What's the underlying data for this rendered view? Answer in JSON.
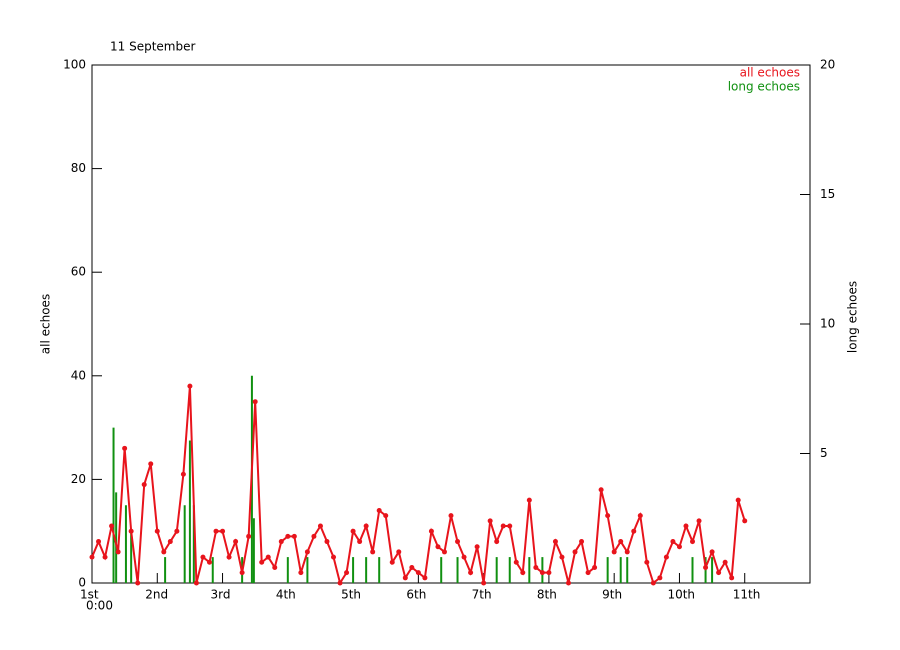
{
  "chart_data": {
    "type": "line",
    "title": "11 September",
    "y_label": "all echoes",
    "y2_label": "long echoes",
    "x_start_time": "0:00",
    "xlim": [
      0,
      11
    ],
    "xticks": [
      {
        "value": 0,
        "label": "1st"
      },
      {
        "value": 1,
        "label": "2nd"
      },
      {
        "value": 2,
        "label": "3rd"
      },
      {
        "value": 3,
        "label": "4th"
      },
      {
        "value": 4,
        "label": "5th"
      },
      {
        "value": 5,
        "label": "6th"
      },
      {
        "value": 6,
        "label": "7th"
      },
      {
        "value": 7,
        "label": "8th"
      },
      {
        "value": 8,
        "label": "9th"
      },
      {
        "value": 9,
        "label": "10th"
      },
      {
        "value": 10,
        "label": "11th"
      }
    ],
    "ylim": [
      0,
      100
    ],
    "yticks": [
      0,
      20,
      40,
      60,
      80,
      100
    ],
    "y2lim": [
      0,
      20
    ],
    "y2ticks": [
      5,
      10,
      15,
      20
    ],
    "legend": "top-right",
    "series": [
      {
        "name": "all echoes",
        "color": "#e8141c",
        "x": [
          0,
          0.1,
          0.2,
          0.3,
          0.4,
          0.5,
          0.6,
          0.7,
          0.8,
          0.9,
          1,
          1.1,
          1.2,
          1.3,
          1.4,
          1.5,
          1.6,
          1.7,
          1.8,
          1.9,
          2,
          2.1,
          2.2,
          2.3,
          2.4,
          2.5,
          2.6,
          2.7,
          2.8,
          2.9,
          3,
          3.1,
          3.2,
          3.3,
          3.4,
          3.5,
          3.6,
          3.7,
          3.8,
          3.9,
          4,
          4.1,
          4.2,
          4.3,
          4.4,
          4.5,
          4.6,
          4.7,
          4.8,
          4.9,
          5,
          5.1,
          5.2,
          5.3,
          5.4,
          5.5,
          5.6,
          5.7,
          5.8,
          5.9,
          6,
          6.1,
          6.2,
          6.3,
          6.4,
          6.5,
          6.6,
          6.7,
          6.8,
          6.9,
          7,
          7.1,
          7.2,
          7.3,
          7.4,
          7.5,
          7.6,
          7.7,
          7.8,
          7.9,
          8,
          8.1,
          8.2,
          8.3,
          8.4,
          8.5,
          8.6,
          8.7,
          8.8,
          8.9,
          9,
          9.1,
          9.2,
          9.3,
          9.4,
          9.5,
          9.6,
          9.7,
          9.8,
          9.9,
          10
        ],
        "values": [
          5,
          8,
          5,
          11,
          6,
          26,
          10,
          0,
          19,
          23,
          10,
          6,
          8,
          10,
          21,
          38,
          0,
          5,
          4,
          10,
          10,
          5,
          8,
          2,
          9,
          35,
          4,
          5,
          3,
          8,
          9,
          9,
          2,
          6,
          9,
          11,
          8,
          5,
          0,
          2,
          10,
          8,
          11,
          6,
          14,
          13,
          4,
          6,
          1,
          3,
          2,
          1,
          10,
          7,
          6,
          13,
          8,
          5,
          2,
          7,
          0,
          12,
          8,
          11,
          11,
          4,
          2,
          16,
          3,
          2,
          2,
          8,
          5,
          0,
          6,
          8,
          2,
          3,
          18,
          13,
          6,
          8,
          6,
          10,
          13,
          4,
          0,
          1,
          5,
          8,
          7,
          11,
          8,
          12,
          3,
          6,
          2,
          4,
          1,
          16,
          12
        ]
      },
      {
        "name": "long echoes",
        "color": "#109010",
        "axis": "y2",
        "x": [
          0.33,
          0.37,
          0.52,
          0.6,
          1.12,
          1.42,
          1.5,
          1.56,
          1.85,
          2.3,
          2.45,
          2.48,
          3.0,
          3.3,
          4.0,
          4.2,
          4.4,
          5.35,
          5.6,
          6.2,
          6.4,
          6.7,
          6.9,
          7.9,
          8.1,
          8.2,
          9.2,
          9.4,
          9.5
        ],
        "values": [
          6,
          3.5,
          3,
          2,
          1,
          3,
          5.5,
          3,
          1,
          1,
          8,
          2.5,
          1,
          1,
          1,
          1,
          1,
          1,
          1,
          1,
          1,
          1,
          1,
          1,
          1,
          1,
          1,
          1,
          1
        ]
      }
    ]
  }
}
